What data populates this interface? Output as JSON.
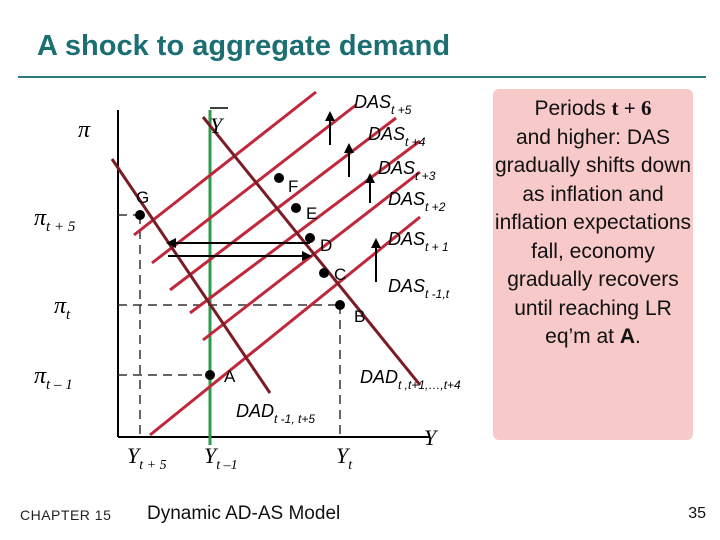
{
  "slide": {
    "title": "A shock to aggregate demand"
  },
  "diagram": {
    "y_axis_label": "π",
    "x_axis_label": "Y",
    "y_ticks": [
      {
        "base": "π",
        "sub": "t + 5"
      },
      {
        "base": "π",
        "sub": "t"
      },
      {
        "base": "π",
        "sub": "t – 1"
      }
    ],
    "x_ticks": [
      {
        "base": "Y",
        "sub": "t + 5"
      },
      {
        "base": "Y",
        "sub": "t –1"
      },
      {
        "base": "Y",
        "sub": "t"
      }
    ],
    "lr_label": "Y",
    "das_labels": [
      {
        "base": "DAS",
        "sub": "t +5"
      },
      {
        "base": "DAS",
        "sub": "t +4"
      },
      {
        "base": "DAS",
        "sub": "t +3"
      },
      {
        "base": "DAS",
        "sub": "t +2"
      },
      {
        "base": "DAS",
        "sub": "t + 1"
      },
      {
        "base": "DAS",
        "sub": "t -1,t"
      }
    ],
    "dad_labels": [
      {
        "base": "DAD",
        "sub": "t ,t+1,…,t+4"
      },
      {
        "base": "DAD",
        "sub": "t -1, t+5"
      }
    ],
    "points": [
      "A",
      "B",
      "C",
      "D",
      "E",
      "F",
      "G"
    ]
  },
  "sidebar": {
    "line1": "Periods ",
    "line1_em": "t + 6",
    "body": "and higher: DAS gradually shifts down as inflation and inflation expectations fall, economy gradually recovers until reaching LR eq’m at ",
    "end_em": "A",
    "end": "."
  },
  "footer": {
    "chapter": "CHAPTER 15",
    "title": "Dynamic AD-AS Model",
    "page": "35"
  },
  "colors": {
    "title": "#1b6f73",
    "das": "#c0283a",
    "dad": "#7a1c26",
    "lr": "#2e9a4c",
    "sidebar_bg": "#f7c9c9"
  }
}
